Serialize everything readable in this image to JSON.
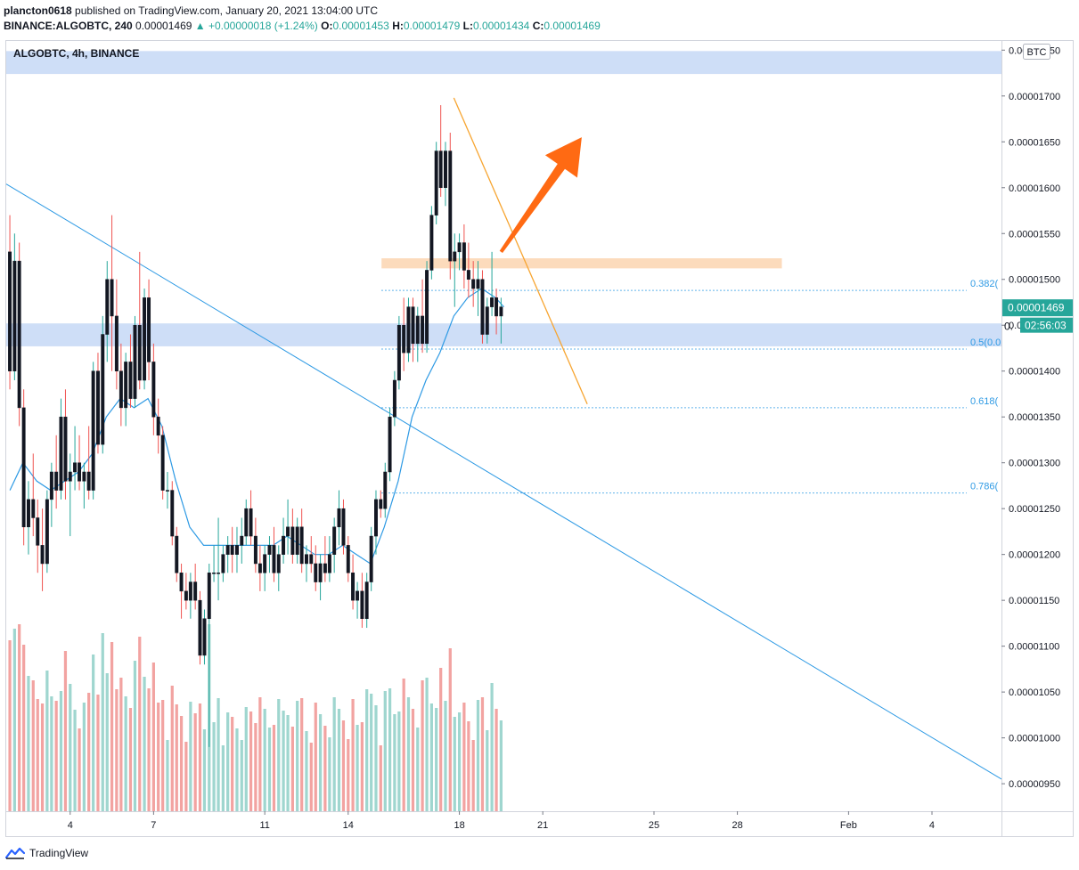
{
  "header": {
    "author": "plancton0618",
    "published_text": "published on TradingView.com, January 20, 2021 13:04:00 UTC",
    "symbol_line": "BINANCE:ALGOBTC, 240",
    "last": "0.00001469",
    "change": "▲ +0.00000018 (+1.24%)",
    "o_label": "O:",
    "o": "0.00001453",
    "h_label": "H:",
    "h": "0.00001479",
    "l_label": "L:",
    "l": "0.00001434",
    "c_label": "C:",
    "c": "0.00001469"
  },
  "legend": {
    "title": "ALGOBTC, 4h, BINANCE"
  },
  "currency_badge": "BTC",
  "price_label": "0.00001469",
  "countdown_label": "02:56:03",
  "partial_price_label": "0.",
  "footer": {
    "brand": "TradingView"
  },
  "colors": {
    "up": "#26a69a",
    "down": "#ef5350",
    "vol_up": "#9fd6cf",
    "vol_down": "#f2a3a1",
    "trendline": "#2e9ae4",
    "ma": "#2e9ae4",
    "zone_blue": "#c5d8f6",
    "zone_orange": "#fbd5b0",
    "orange_line": "#f7a531",
    "arrow": "#ff6a13",
    "fib": "#2e9ae4",
    "price_tag": "#26a69a"
  },
  "chart_data": {
    "type": "candlestick",
    "title": "ALGOBTC, 4h, BINANCE",
    "y_axis": {
      "unit": "BTC",
      "ylim": [
        9.2e-06,
        1.76e-05
      ],
      "ticks": [
        "0.00000950",
        "0.00001000",
        "0.00001050",
        "0.00001100",
        "0.00001150",
        "0.00001200",
        "0.00001250",
        "0.00001300",
        "0.00001350",
        "0.00001400",
        "0.00001450",
        "0.00001500",
        "0.00001550",
        "0.00001600",
        "0.00001650",
        "0.00001700",
        "0.00001750"
      ]
    },
    "x_axis": {
      "tick_labels": [
        {
          "label": "4",
          "day": 4
        },
        {
          "label": "7",
          "day": 7
        },
        {
          "label": "11",
          "day": 11
        },
        {
          "label": "14",
          "day": 14
        },
        {
          "label": "18",
          "day": 18
        },
        {
          "label": "21",
          "day": 21
        },
        {
          "label": "25",
          "day": 25
        },
        {
          "label": "28",
          "day": 28
        },
        {
          "label": "Feb",
          "day": 32
        },
        {
          "label": "4",
          "day": 35
        }
      ],
      "range_days": [
        1.7,
        37.5
      ]
    },
    "last_price": 1.469e-05,
    "fib_levels": [
      {
        "label": "0.382(",
        "price": 1.488e-05
      },
      {
        "label": "0.5(0.0",
        "price": 1.424e-05
      },
      {
        "label": "0.618(",
        "price": 1.36e-05
      },
      {
        "label": "0.786(",
        "price": 1.267e-05
      }
    ],
    "zones": [
      {
        "name": "upper-resistance",
        "from": 1.724e-05,
        "to": 1.749e-05,
        "day_from": 1.7,
        "day_to": 37.5
      },
      {
        "name": "support",
        "from": 1.427e-05,
        "to": 1.452e-05,
        "day_from": 1.7,
        "day_to": 37.5
      },
      {
        "name": "resistance",
        "from": 1.512e-05,
        "to": 1.523e-05,
        "day_from": 15.2,
        "day_to": 29.6
      }
    ],
    "trendline": {
      "from": {
        "day": 1.7,
        "price": 1.604e-05
      },
      "to": {
        "day": 37.5,
        "price": 9.55e-06
      }
    },
    "orange_line": {
      "from": {
        "day": 17.8,
        "price": 1.698e-05
      },
      "to": {
        "day": 22.6,
        "price": 1.364e-05
      }
    },
    "arrow": {
      "from": {
        "day": 19.5,
        "price": 1.53e-05
      },
      "to": {
        "day": 22.4,
        "price": 1.655e-05
      }
    },
    "candles": [
      [
        1.83,
        1.53e-05,
        1.57e-05,
        1.38e-05,
        1.4e-05
      ],
      [
        2.0,
        1.4e-05,
        1.55e-05,
        1.39e-05,
        1.52e-05
      ],
      [
        2.17,
        1.52e-05,
        1.54e-05,
        1.34e-05,
        1.36e-05
      ],
      [
        2.33,
        1.36e-05,
        1.38e-05,
        1.21e-05,
        1.23e-05
      ],
      [
        2.5,
        1.23e-05,
        1.28e-05,
        1.2e-05,
        1.26e-05
      ],
      [
        2.67,
        1.26e-05,
        1.31e-05,
        1.22e-05,
        1.24e-05
      ],
      [
        2.83,
        1.24e-05,
        1.26e-05,
        1.18e-05,
        1.21e-05
      ],
      [
        3.0,
        1.21e-05,
        1.25e-05,
        1.16e-05,
        1.19e-05
      ],
      [
        3.17,
        1.19e-05,
        1.27e-05,
        1.18e-05,
        1.26e-05
      ],
      [
        3.33,
        1.26e-05,
        1.3e-05,
        1.23e-05,
        1.29e-05
      ],
      [
        3.5,
        1.29e-05,
        1.33e-05,
        1.25e-05,
        1.27e-05
      ],
      [
        3.67,
        1.27e-05,
        1.37e-05,
        1.26e-05,
        1.35e-05
      ],
      [
        3.83,
        1.35e-05,
        1.38e-05,
        1.26e-05,
        1.28e-05
      ],
      [
        4.0,
        1.28e-05,
        1.31e-05,
        1.22e-05,
        1.29e-05
      ],
      [
        4.17,
        1.29e-05,
        1.34e-05,
        1.27e-05,
        1.3e-05
      ],
      [
        4.33,
        1.3e-05,
        1.33e-05,
        1.27e-05,
        1.28e-05
      ],
      [
        4.5,
        1.28e-05,
        1.3e-05,
        1.25e-05,
        1.29e-05
      ],
      [
        4.67,
        1.29e-05,
        1.34e-05,
        1.26e-05,
        1.27e-05
      ],
      [
        4.83,
        1.27e-05,
        1.41e-05,
        1.26e-05,
        1.4e-05
      ],
      [
        5.0,
        1.4e-05,
        1.42e-05,
        1.31e-05,
        1.32e-05
      ],
      [
        5.17,
        1.32e-05,
        1.46e-05,
        1.31e-05,
        1.44e-05
      ],
      [
        5.33,
        1.44e-05,
        1.52e-05,
        1.41e-05,
        1.5e-05
      ],
      [
        5.5,
        1.5e-05,
        1.57e-05,
        1.4e-05,
        1.46e-05
      ],
      [
        5.67,
        1.46e-05,
        1.5e-05,
        1.38e-05,
        1.4e-05
      ],
      [
        5.83,
        1.4e-05,
        1.43e-05,
        1.34e-05,
        1.36e-05
      ],
      [
        6.0,
        1.36e-05,
        1.42e-05,
        1.34e-05,
        1.41e-05
      ],
      [
        6.17,
        1.41e-05,
        1.44e-05,
        1.36e-05,
        1.37e-05
      ],
      [
        6.33,
        1.37e-05,
        1.46e-05,
        1.36e-05,
        1.45e-05
      ],
      [
        6.5,
        1.45e-05,
        1.53e-05,
        1.38e-05,
        1.39e-05
      ],
      [
        6.67,
        1.39e-05,
        1.49e-05,
        1.38e-05,
        1.48e-05
      ],
      [
        6.83,
        1.48e-05,
        1.5e-05,
        1.39e-05,
        1.41e-05
      ],
      [
        7.0,
        1.41e-05,
        1.43e-05,
        1.33e-05,
        1.35e-05
      ],
      [
        7.17,
        1.35e-05,
        1.37e-05,
        1.31e-05,
        1.33e-05
      ],
      [
        7.33,
        1.33e-05,
        1.34e-05,
        1.26e-05,
        1.27e-05
      ],
      [
        7.5,
        1.27e-05,
        1.29e-05,
        1.25e-05,
        1.27e-05
      ],
      [
        7.67,
        1.27e-05,
        1.28e-05,
        1.21e-05,
        1.22e-05
      ],
      [
        7.83,
        1.22e-05,
        1.23e-05,
        1.17e-05,
        1.18e-05
      ],
      [
        8.0,
        1.18e-05,
        1.19e-05,
        1.13e-05,
        1.16e-05
      ],
      [
        8.17,
        1.16e-05,
        1.18e-05,
        1.14e-05,
        1.15e-05
      ],
      [
        8.33,
        1.15e-05,
        1.18e-05,
        1.13e-05,
        1.17e-05
      ],
      [
        8.5,
        1.17e-05,
        1.19e-05,
        1.14e-05,
        1.15e-05
      ],
      [
        8.67,
        1.15e-05,
        1.16e-05,
        1.08e-05,
        1.09e-05
      ],
      [
        8.83,
        1.09e-05,
        1.14e-05,
        1.08e-05,
        1.13e-05
      ],
      [
        9.0,
        1.13e-05,
        1.19e-05,
        9.9e-06,
        1.18e-05
      ],
      [
        9.17,
        1.18e-05,
        1.21e-05,
        1.17e-05,
        1.18e-05
      ],
      [
        9.33,
        1.18e-05,
        1.24e-05,
        1.15e-05,
        1.18e-05
      ],
      [
        9.5,
        1.18e-05,
        1.21e-05,
        1.17e-05,
        1.2e-05
      ],
      [
        9.67,
        1.2e-05,
        1.22e-05,
        1.18e-05,
        1.21e-05
      ],
      [
        9.83,
        1.21e-05,
        1.23e-05,
        1.18e-05,
        1.2e-05
      ],
      [
        10.0,
        1.2e-05,
        1.23e-05,
        1.18e-05,
        1.21e-05
      ],
      [
        10.17,
        1.21e-05,
        1.24e-05,
        1.19e-05,
        1.22e-05
      ],
      [
        10.33,
        1.22e-05,
        1.26e-05,
        1.21e-05,
        1.25e-05
      ],
      [
        10.5,
        1.25e-05,
        1.27e-05,
        1.21e-05,
        1.22e-05
      ],
      [
        10.67,
        1.22e-05,
        1.24e-05,
        1.18e-05,
        1.19e-05
      ],
      [
        10.83,
        1.19e-05,
        1.21e-05,
        1.16e-05,
        1.18e-05
      ],
      [
        11.0,
        1.18e-05,
        1.21e-05,
        1.16e-05,
        1.2e-05
      ],
      [
        11.17,
        1.2e-05,
        1.22e-05,
        1.18e-05,
        1.21e-05
      ],
      [
        11.33,
        1.21e-05,
        1.23e-05,
        1.17e-05,
        1.18e-05
      ],
      [
        11.5,
        1.18e-05,
        1.21e-05,
        1.16e-05,
        1.2e-05
      ],
      [
        11.67,
        1.2e-05,
        1.24e-05,
        1.19e-05,
        1.22e-05
      ],
      [
        11.83,
        1.22e-05,
        1.26e-05,
        1.2e-05,
        1.23e-05
      ],
      [
        12.0,
        1.23e-05,
        1.25e-05,
        1.19e-05,
        1.2e-05
      ],
      [
        12.17,
        1.2e-05,
        1.24e-05,
        1.19e-05,
        1.23e-05
      ],
      [
        12.33,
        1.23e-05,
        1.25e-05,
        1.18e-05,
        1.19e-05
      ],
      [
        12.5,
        1.19e-05,
        1.21e-05,
        1.17e-05,
        1.2e-05
      ],
      [
        12.67,
        1.2e-05,
        1.22e-05,
        1.18e-05,
        1.19e-05
      ],
      [
        12.83,
        1.19e-05,
        1.21e-05,
        1.16e-05,
        1.17e-05
      ],
      [
        13.0,
        1.17e-05,
        1.2e-05,
        1.15e-05,
        1.19e-05
      ],
      [
        13.17,
        1.19e-05,
        1.22e-05,
        1.17e-05,
        1.18e-05
      ],
      [
        13.33,
        1.18e-05,
        1.22e-05,
        1.17e-05,
        1.2e-05
      ],
      [
        13.5,
        1.2e-05,
        1.24e-05,
        1.18e-05,
        1.23e-05
      ],
      [
        13.67,
        1.23e-05,
        1.27e-05,
        1.21e-05,
        1.25e-05
      ],
      [
        13.83,
        1.25e-05,
        1.26e-05,
        1.2e-05,
        1.21e-05
      ],
      [
        14.0,
        1.21e-05,
        1.22e-05,
        1.17e-05,
        1.18e-05
      ],
      [
        14.17,
        1.18e-05,
        1.2e-05,
        1.14e-05,
        1.15e-05
      ],
      [
        14.33,
        1.15e-05,
        1.17e-05,
        1.13e-05,
        1.16e-05
      ],
      [
        14.5,
        1.16e-05,
        1.18e-05,
        1.12e-05,
        1.13e-05
      ],
      [
        14.67,
        1.13e-05,
        1.18e-05,
        1.12e-05,
        1.17e-05
      ],
      [
        14.83,
        1.17e-05,
        1.23e-05,
        1.16e-05,
        1.22e-05
      ],
      [
        15.0,
        1.22e-05,
        1.27e-05,
        1.2e-05,
        1.26e-05
      ],
      [
        15.17,
        1.26e-05,
        1.27e-05,
        1.24e-05,
        1.25e-05
      ],
      [
        15.33,
        1.25e-05,
        1.3e-05,
        1.24e-05,
        1.29e-05
      ],
      [
        15.5,
        1.29e-05,
        1.36e-05,
        1.28e-05,
        1.35e-05
      ],
      [
        15.67,
        1.35e-05,
        1.4e-05,
        1.34e-05,
        1.39e-05
      ],
      [
        15.83,
        1.39e-05,
        1.46e-05,
        1.38e-05,
        1.45e-05
      ],
      [
        16.0,
        1.45e-05,
        1.48e-05,
        1.4e-05,
        1.42e-05
      ],
      [
        16.17,
        1.42e-05,
        1.48e-05,
        1.41e-05,
        1.47e-05
      ],
      [
        16.33,
        1.47e-05,
        1.48e-05,
        1.41e-05,
        1.43e-05
      ],
      [
        16.5,
        1.43e-05,
        1.47e-05,
        1.41e-05,
        1.46e-05
      ],
      [
        16.67,
        1.46e-05,
        1.5e-05,
        1.42e-05,
        1.43e-05
      ],
      [
        16.83,
        1.43e-05,
        1.52e-05,
        1.42e-05,
        1.51e-05
      ],
      [
        17.0,
        1.51e-05,
        1.58e-05,
        1.5e-05,
        1.57e-05
      ],
      [
        17.17,
        1.57e-05,
        1.65e-05,
        1.56e-05,
        1.64e-05
      ],
      [
        17.33,
        1.64e-05,
        1.69e-05,
        1.59e-05,
        1.6e-05
      ],
      [
        17.5,
        1.6e-05,
        1.65e-05,
        1.58e-05,
        1.64e-05
      ],
      [
        17.67,
        1.64e-05,
        1.66e-05,
        1.5e-05,
        1.52e-05
      ],
      [
        17.83,
        1.52e-05,
        1.55e-05,
        1.47e-05,
        1.53e-05
      ],
      [
        18.0,
        1.53e-05,
        1.55e-05,
        1.51e-05,
        1.54e-05
      ],
      [
        18.17,
        1.54e-05,
        1.56e-05,
        1.49e-05,
        1.51e-05
      ],
      [
        18.33,
        1.51e-05,
        1.54e-05,
        1.48e-05,
        1.5e-05
      ],
      [
        18.5,
        1.5e-05,
        1.52e-05,
        1.47e-05,
        1.49e-05
      ],
      [
        18.67,
        1.49e-05,
        1.52e-05,
        1.46e-05,
        1.5e-05
      ],
      [
        18.83,
        1.5e-05,
        1.51e-05,
        1.43e-05,
        1.44e-05
      ],
      [
        19.0,
        1.44e-05,
        1.48e-05,
        1.43e-05,
        1.47e-05
      ],
      [
        19.17,
        1.47e-05,
        1.53e-05,
        1.46e-05,
        1.48e-05
      ],
      [
        19.33,
        1.48e-05,
        1.49e-05,
        1.44e-05,
        1.46e-05
      ],
      [
        19.5,
        1.46e-05,
        1.48e-05,
        1.43e-05,
        1.47e-05
      ]
    ],
    "ma": [
      [
        1.83,
        1.27e-05
      ],
      [
        2.3,
        1.3e-05
      ],
      [
        2.8,
        1.28e-05
      ],
      [
        3.3,
        1.27e-05
      ],
      [
        3.8,
        1.28e-05
      ],
      [
        4.3,
        1.29e-05
      ],
      [
        4.8,
        1.31e-05
      ],
      [
        5.3,
        1.35e-05
      ],
      [
        5.8,
        1.37e-05
      ],
      [
        6.3,
        1.36e-05
      ],
      [
        6.8,
        1.37e-05
      ],
      [
        7.3,
        1.34e-05
      ],
      [
        7.8,
        1.28e-05
      ],
      [
        8.3,
        1.23e-05
      ],
      [
        8.8,
        1.21e-05
      ],
      [
        9.3,
        1.21e-05
      ],
      [
        9.8,
        1.21e-05
      ],
      [
        10.3,
        1.21e-05
      ],
      [
        10.8,
        1.21e-05
      ],
      [
        11.3,
        1.21e-05
      ],
      [
        11.8,
        1.22e-05
      ],
      [
        12.3,
        1.21e-05
      ],
      [
        12.8,
        1.2e-05
      ],
      [
        13.3,
        1.2e-05
      ],
      [
        13.8,
        1.21e-05
      ],
      [
        14.3,
        1.2e-05
      ],
      [
        14.8,
        1.19e-05
      ],
      [
        15.3,
        1.23e-05
      ],
      [
        15.8,
        1.28e-05
      ],
      [
        16.3,
        1.35e-05
      ],
      [
        16.8,
        1.39e-05
      ],
      [
        17.3,
        1.42e-05
      ],
      [
        17.8,
        1.46e-05
      ],
      [
        18.3,
        1.48e-05
      ],
      [
        18.8,
        1.49e-05
      ],
      [
        19.3,
        1.48e-05
      ],
      [
        19.6,
        1.47e-05
      ]
    ]
  }
}
